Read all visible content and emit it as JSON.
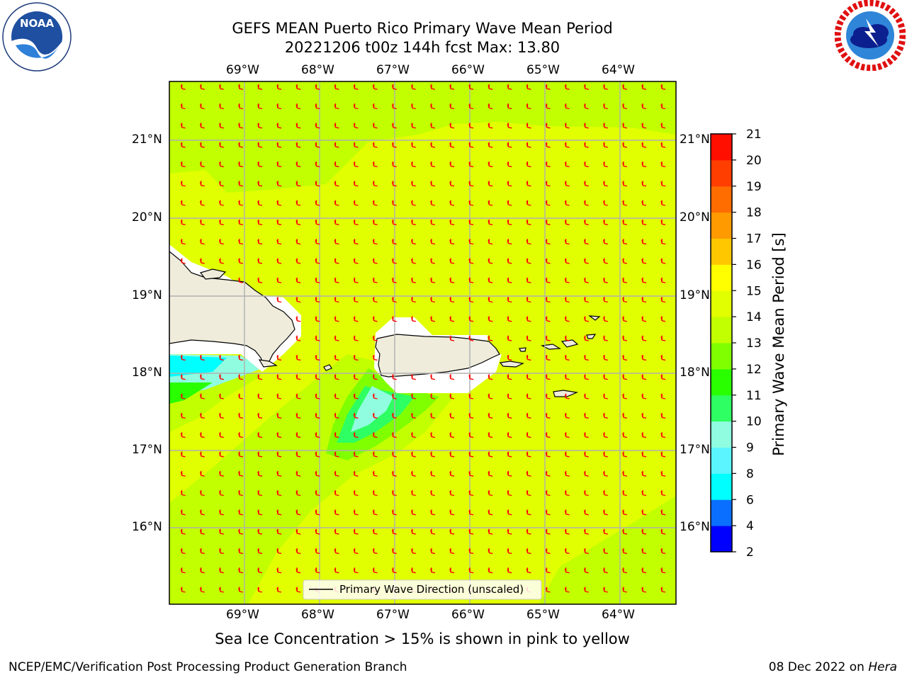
{
  "header": {
    "title_line1": "GEFS MEAN Puerto Rico Primary Wave Mean Period",
    "title_line2": "20221206 t00z 144h fcst   Max: 13.80"
  },
  "logos": {
    "noaa_text": "NOAA",
    "nws_icon": "national-weather-service-logo"
  },
  "map": {
    "lon_labels": [
      "69°W",
      "68°W",
      "67°W",
      "66°W",
      "65°W",
      "64°W"
    ],
    "lat_labels": [
      "21°N",
      "20°N",
      "19°N",
      "18°N",
      "17°N",
      "16°N"
    ],
    "legend_label": "Primary Wave Direction (unscaled)",
    "arrow_color": "#ff0000",
    "land_color": "#efecdc"
  },
  "colorbar": {
    "label": "Primary Wave Mean Period [s]",
    "ticks": [
      "2",
      "4",
      "6",
      "8",
      "9",
      "10",
      "11",
      "12",
      "13",
      "14",
      "15",
      "16",
      "17",
      "18",
      "19",
      "20",
      "21"
    ],
    "colors": [
      "#0000ff",
      "#0a6fff",
      "#00ffff",
      "#5af5ff",
      "#90fde0",
      "#2eff62",
      "#2aff00",
      "#80ff00",
      "#c2ff00",
      "#e1ff00",
      "#ffff00",
      "#ffc700",
      "#ff9a00",
      "#ff6c00",
      "#ff3e00",
      "#ff0f00"
    ]
  },
  "caption": "Sea Ice Concentration > 15% is shown in pink to yellow",
  "footer": {
    "left": "NCEP/EMC/Verification Post Processing Product Generation Branch",
    "right_prefix": "08 Dec 2022 on ",
    "right_host": "Hera"
  }
}
